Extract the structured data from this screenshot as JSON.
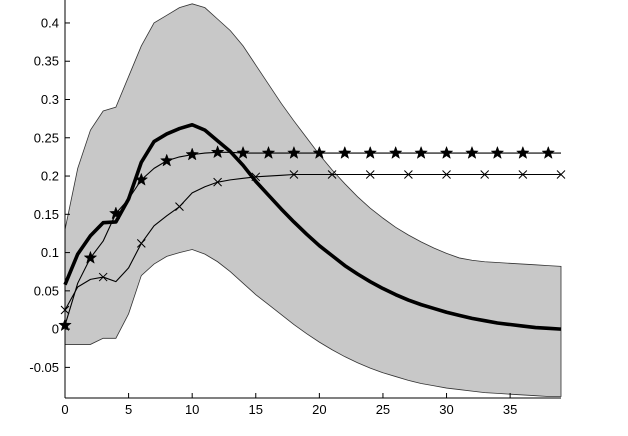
{
  "chart_data": {
    "type": "line",
    "title": "",
    "xlabel": "",
    "ylabel": "",
    "xlim": [
      0,
      39
    ],
    "ylim": [
      -0.09,
      0.43
    ],
    "x_ticks": [
      0,
      5,
      10,
      15,
      20,
      25,
      30,
      35
    ],
    "x_tick_labels": [
      "0",
      "5",
      "10",
      "15",
      "20",
      "25",
      "30",
      "35"
    ],
    "y_ticks": [
      -0.05,
      0,
      0.05,
      0.1,
      0.15,
      0.2,
      0.25,
      0.3,
      0.35,
      0.4
    ],
    "y_tick_labels": [
      "-0.05",
      "0",
      "0.05",
      "0.1",
      "0.15",
      "0.2",
      "0.25",
      "0.3",
      "0.35",
      "0.4"
    ],
    "grid": false,
    "legend": "none",
    "band": {
      "fill_color": "#c8c8c8",
      "x": [
        0,
        1,
        2,
        3,
        4,
        5,
        6,
        7,
        8,
        9,
        10,
        11,
        12,
        13,
        14,
        15,
        16,
        17,
        18,
        19,
        20,
        21,
        22,
        23,
        24,
        25,
        26,
        27,
        28,
        29,
        30,
        31,
        32,
        33,
        34,
        35,
        36,
        37,
        38,
        39
      ],
      "upper": [
        0.13,
        0.21,
        0.26,
        0.285,
        0.29,
        0.33,
        0.37,
        0.4,
        0.41,
        0.42,
        0.425,
        0.42,
        0.405,
        0.39,
        0.37,
        0.345,
        0.32,
        0.295,
        0.272,
        0.25,
        0.228,
        0.208,
        0.19,
        0.173,
        0.158,
        0.145,
        0.133,
        0.123,
        0.114,
        0.106,
        0.099,
        0.093,
        0.09,
        0.088,
        0.087,
        0.086,
        0.085,
        0.084,
        0.083,
        0.082
      ],
      "lower": [
        -0.02,
        -0.02,
        -0.02,
        -0.012,
        -0.012,
        0.02,
        0.07,
        0.085,
        0.095,
        0.1,
        0.104,
        0.098,
        0.088,
        0.075,
        0.06,
        0.045,
        0.032,
        0.019,
        0.006,
        -0.006,
        -0.017,
        -0.027,
        -0.036,
        -0.044,
        -0.051,
        -0.057,
        -0.062,
        -0.067,
        -0.071,
        -0.074,
        -0.077,
        -0.079,
        -0.081,
        -0.083,
        -0.084,
        -0.085,
        -0.086,
        -0.087,
        -0.088,
        -0.088
      ]
    },
    "series": [
      {
        "style": "thick",
        "color": "#000000",
        "x": [
          0,
          1,
          2,
          3,
          4,
          5,
          6,
          7,
          8,
          9,
          10,
          11,
          12,
          13,
          14,
          15,
          16,
          17,
          18,
          19,
          20,
          21,
          22,
          23,
          24,
          25,
          26,
          27,
          28,
          29,
          30,
          31,
          32,
          33,
          34,
          35,
          36,
          37,
          38,
          39
        ],
        "values": [
          0.058,
          0.098,
          0.122,
          0.139,
          0.14,
          0.17,
          0.218,
          0.245,
          0.255,
          0.262,
          0.267,
          0.26,
          0.246,
          0.232,
          0.214,
          0.193,
          0.175,
          0.157,
          0.14,
          0.124,
          0.109,
          0.096,
          0.083,
          0.072,
          0.062,
          0.053,
          0.045,
          0.038,
          0.032,
          0.027,
          0.022,
          0.018,
          0.014,
          0.011,
          0.008,
          0.006,
          0.004,
          0.002,
          0.001,
          0.0
        ]
      },
      {
        "style": "thin-star",
        "color": "#000000",
        "marker": "star",
        "x": [
          0,
          1,
          2,
          3,
          4,
          5,
          6,
          7,
          8,
          9,
          10,
          11,
          12,
          13,
          14,
          15,
          16,
          17,
          18,
          19,
          20,
          21,
          22,
          23,
          24,
          25,
          26,
          27,
          28,
          29,
          30,
          31,
          32,
          33,
          34,
          35,
          36,
          37,
          38,
          39
        ],
        "values": [
          0.005,
          0.06,
          0.093,
          0.115,
          0.151,
          0.17,
          0.195,
          0.21,
          0.22,
          0.225,
          0.228,
          0.23,
          0.231,
          0.231,
          0.23,
          0.23,
          0.23,
          0.23,
          0.23,
          0.23,
          0.23,
          0.23,
          0.23,
          0.23,
          0.23,
          0.23,
          0.23,
          0.23,
          0.23,
          0.23,
          0.23,
          0.23,
          0.23,
          0.23,
          0.23,
          0.23,
          0.23,
          0.23,
          0.23,
          0.23
        ],
        "marker_x": [
          0,
          2,
          4,
          6,
          8,
          10,
          12,
          14,
          16,
          18,
          20,
          22,
          24,
          26,
          28,
          30,
          32,
          34,
          36,
          38
        ]
      },
      {
        "style": "thin-cross",
        "color": "#000000",
        "marker": "x",
        "x": [
          0,
          1,
          2,
          3,
          4,
          5,
          6,
          7,
          8,
          9,
          10,
          11,
          12,
          13,
          14,
          15,
          16,
          17,
          18,
          19,
          20,
          21,
          22,
          23,
          24,
          25,
          26,
          27,
          28,
          29,
          30,
          31,
          32,
          33,
          34,
          35,
          36,
          37,
          38,
          39
        ],
        "values": [
          0.025,
          0.055,
          0.065,
          0.068,
          0.062,
          0.08,
          0.112,
          0.135,
          0.148,
          0.16,
          0.178,
          0.186,
          0.192,
          0.195,
          0.197,
          0.199,
          0.2,
          0.201,
          0.202,
          0.202,
          0.202,
          0.202,
          0.202,
          0.202,
          0.202,
          0.202,
          0.202,
          0.202,
          0.202,
          0.202,
          0.202,
          0.202,
          0.202,
          0.202,
          0.202,
          0.202,
          0.202,
          0.202,
          0.202,
          0.202
        ],
        "marker_x": [
          0,
          3,
          6,
          9,
          12,
          15,
          18,
          21,
          24,
          27,
          30,
          33,
          36,
          39
        ]
      }
    ]
  }
}
